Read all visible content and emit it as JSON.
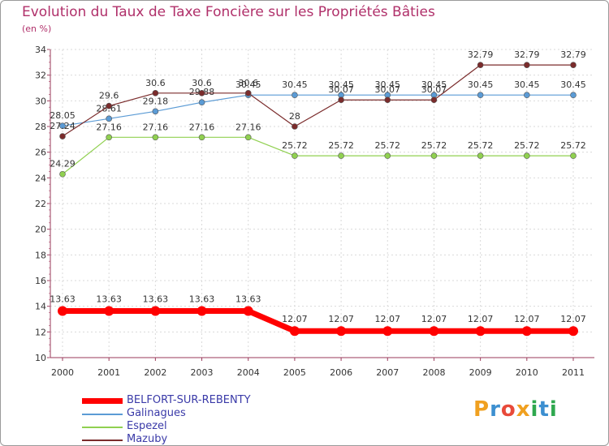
{
  "header": {
    "title": "Evolution du Taux de Taxe Foncière sur les Propriétés Bâties",
    "subtitle": "(en %)"
  },
  "logo": {
    "letters": [
      "P",
      "r",
      "o",
      "x",
      "i",
      "t",
      "i"
    ],
    "colors": [
      "#f0a020",
      "#3c8fd0",
      "#e84a3a",
      "#f0a020",
      "#2fa84f",
      "#3c8fd0",
      "#2fa84f"
    ]
  },
  "chart_data": {
    "type": "line",
    "title": "Evolution du Taux de Taxe Foncière sur les Propriétés Bâties",
    "ylabel": "(en %)",
    "xlabel": "",
    "ylim": [
      10,
      34
    ],
    "yticks": [
      10,
      12,
      14,
      16,
      18,
      20,
      22,
      24,
      26,
      28,
      30,
      32,
      34
    ],
    "categories": [
      "2000",
      "2001",
      "2002",
      "2003",
      "2004",
      "2005",
      "2006",
      "2007",
      "2008",
      "2009",
      "2010",
      "2011"
    ],
    "grid": true,
    "legend_position": "bottom-left",
    "series": [
      {
        "name": "BELFORT-SUR-REBENTY",
        "color": "#ff0000",
        "values": [
          13.63,
          13.63,
          13.63,
          13.63,
          13.63,
          12.07,
          12.07,
          12.07,
          12.07,
          12.07,
          12.07,
          12.07
        ],
        "labels": [
          "13.63",
          "13.63",
          "13.63",
          "13.63",
          "13.63",
          "12.07",
          "12.07",
          "12.07",
          "12.07",
          "12.07",
          "12.07",
          "12.07"
        ]
      },
      {
        "name": "Galinagues",
        "color": "#5b9bd5",
        "values": [
          28.05,
          28.61,
          29.18,
          29.88,
          30.45,
          30.45,
          30.45,
          30.45,
          30.45,
          30.45,
          30.45,
          30.45
        ],
        "labels": [
          "28.05",
          "28.61",
          "29.18",
          "29.88",
          "30.45",
          "30.45",
          "30.45",
          "30.45",
          "30.45",
          "30.45",
          "30.45",
          "30.45"
        ]
      },
      {
        "name": "Espezel",
        "color": "#90d050",
        "values": [
          24.29,
          27.16,
          27.16,
          27.16,
          27.16,
          25.72,
          25.72,
          25.72,
          25.72,
          25.72,
          25.72,
          25.72
        ],
        "labels": [
          "24.29",
          "27.16",
          "27.16",
          "27.16",
          "27.16",
          "25.72",
          "25.72",
          "25.72",
          "25.72",
          "25.72",
          "25.72",
          "25.72"
        ]
      },
      {
        "name": "Mazuby",
        "color": "#7b2c2c",
        "values": [
          27.24,
          29.6,
          30.6,
          30.6,
          30.6,
          28,
          30.07,
          30.07,
          30.07,
          32.79,
          32.79,
          32.79
        ],
        "labels": [
          "27.24",
          "29.6",
          "30.6",
          "30.6",
          "30.6",
          "28",
          "30.07",
          "30.07",
          "30.07",
          "32.79",
          "32.79",
          "32.79"
        ]
      }
    ]
  }
}
